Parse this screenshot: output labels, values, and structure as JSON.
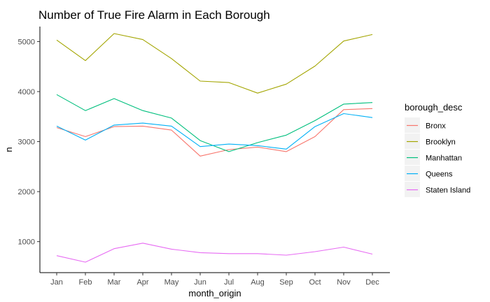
{
  "chart_data": {
    "type": "line",
    "title": "Number of True Fire Alarm in Each Borough",
    "xlabel": "month_origin",
    "ylabel": "n",
    "categories": [
      "Jan",
      "Feb",
      "Mar",
      "Apr",
      "May",
      "Jun",
      "Jul",
      "Aug",
      "Sep",
      "Oct",
      "Nov",
      "Dec"
    ],
    "ylim": [
      380,
      5300
    ],
    "yticks": [
      1000,
      2000,
      3000,
      4000,
      5000
    ],
    "grid": false,
    "legend": {
      "title": "borough_desc",
      "position": "right"
    },
    "series": [
      {
        "name": "Bronx",
        "color": "#F8766D",
        "values": [
          3280,
          3100,
          3300,
          3310,
          3230,
          2710,
          2840,
          2890,
          2800,
          3100,
          3640,
          3660
        ]
      },
      {
        "name": "Brooklyn",
        "color": "#A3A500",
        "values": [
          5030,
          4620,
          5160,
          5040,
          4660,
          4210,
          4180,
          3970,
          4150,
          4510,
          5010,
          5140
        ]
      },
      {
        "name": "Manhattan",
        "color": "#00BF7D",
        "values": [
          3940,
          3620,
          3860,
          3620,
          3470,
          3020,
          2800,
          2980,
          3130,
          3420,
          3750,
          3780
        ]
      },
      {
        "name": "Queens",
        "color": "#00B0F6",
        "values": [
          3310,
          3030,
          3330,
          3370,
          3310,
          2900,
          2950,
          2920,
          2850,
          3300,
          3560,
          3480
        ]
      },
      {
        "name": "Staten Island",
        "color": "#E76BF3",
        "values": [
          720,
          590,
          860,
          970,
          850,
          780,
          760,
          760,
          730,
          800,
          890,
          750
        ]
      }
    ]
  }
}
